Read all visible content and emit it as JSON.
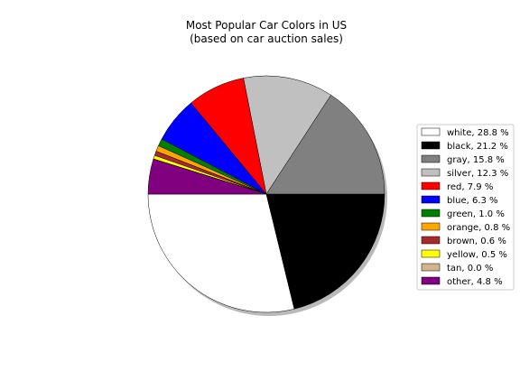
{
  "chart_data": {
    "type": "pie",
    "title_line1": "Most Popular Car Colors in US",
    "title_line2": "(based on car auction sales)",
    "start_angle_deg": 180,
    "direction": "counterclockwise",
    "shadow": true,
    "legend_position": "right",
    "slices": [
      {
        "label": "white",
        "value": 28.8,
        "legend": "white, 28.8 %",
        "color": "#ffffff"
      },
      {
        "label": "black",
        "value": 21.2,
        "legend": "black, 21.2 %",
        "color": "#000000"
      },
      {
        "label": "gray",
        "value": 15.8,
        "legend": "gray, 15.8 %",
        "color": "#808080"
      },
      {
        "label": "silver",
        "value": 12.3,
        "legend": "silver, 12.3 %",
        "color": "#c0c0c0"
      },
      {
        "label": "red",
        "value": 7.9,
        "legend": "red, 7.9 %",
        "color": "#ff0000"
      },
      {
        "label": "blue",
        "value": 6.3,
        "legend": "blue, 6.3 %",
        "color": "#0000ff"
      },
      {
        "label": "green",
        "value": 1.0,
        "legend": "green, 1.0 %",
        "color": "#008000"
      },
      {
        "label": "orange",
        "value": 0.8,
        "legend": "orange, 0.8 %",
        "color": "#ffa500"
      },
      {
        "label": "brown",
        "value": 0.6,
        "legend": "brown, 0.6 %",
        "color": "#a52a2a"
      },
      {
        "label": "yellow",
        "value": 0.5,
        "legend": "yellow, 0.5 %",
        "color": "#ffff00"
      },
      {
        "label": "tan",
        "value": 0.0,
        "legend": "tan, 0.0 %",
        "color": "#d2b48c"
      },
      {
        "label": "other",
        "value": 4.8,
        "legend": "other, 4.8 %",
        "color": "#800080"
      }
    ]
  }
}
